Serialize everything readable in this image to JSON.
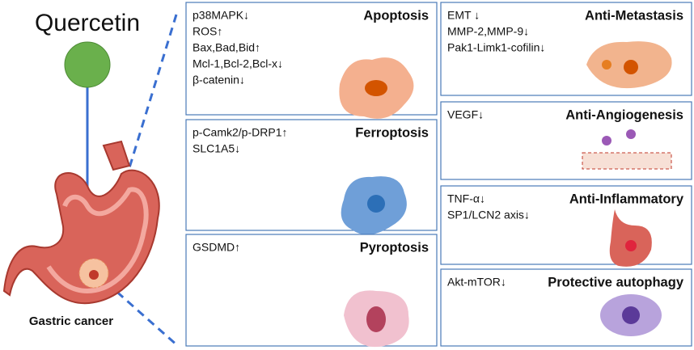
{
  "title": "Quercetin",
  "label": "Gastric cancer",
  "panels": [
    {
      "title": "Apoptosis",
      "lines": [
        "p38MAPK↓",
        "ROS↑",
        "Bax,Bad,Bid↑",
        "Mcl-1,Bcl-2,Bcl-x↓",
        "β-catenin↓"
      ]
    },
    {
      "title": "Ferroptosis",
      "lines": [
        "p-Camk2/p-DRP1↑",
        "SLC1A5↓"
      ]
    },
    {
      "title": "Pyroptosis",
      "lines": [
        "GSDMD↑"
      ]
    },
    {
      "title": "Anti-Metastasis",
      "lines": [
        "EMT ↓",
        "MMP-2,MMP-9↓",
        "Pak1-Limk1-cofilin↓"
      ]
    },
    {
      "title": "Anti-Angiogenesis",
      "lines": [
        "VEGF↓"
      ]
    },
    {
      "title": "Anti-Inflammatory",
      "lines": [
        "TNF-α↓",
        "SP1/LCN2 axis↓"
      ]
    },
    {
      "title": "Protective autophagy",
      "lines": [
        "Akt-mTOR↓"
      ]
    }
  ]
}
